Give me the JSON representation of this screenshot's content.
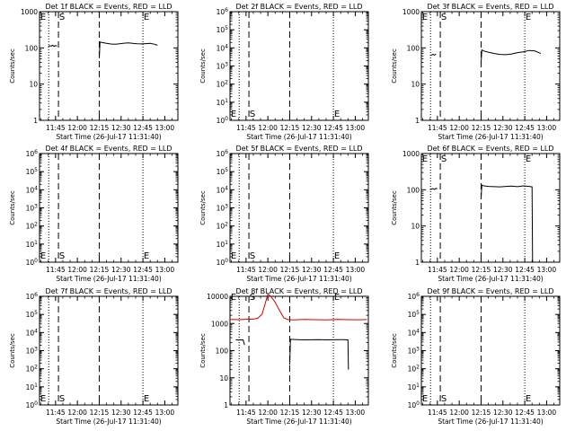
{
  "figure": {
    "ylabel": "Counts/sec",
    "xlabel": "Start Time (26-Jul-17 11:31:40)",
    "x_ticks": [
      "11:45",
      "12:00",
      "12:15",
      "12:30",
      "12:45",
      "13:00"
    ],
    "x_tick_minutes": [
      705,
      720,
      735,
      750,
      765,
      780
    ],
    "colors": {
      "events": "#000000",
      "lld": "#d00000",
      "axes": "#000000"
    }
  },
  "chart_data": [
    {
      "title": "Det 1f BLACK = Events, RED = LLD",
      "type": "line",
      "y_scale": "log",
      "ylim": [
        1,
        1000
      ],
      "y_tick_labels": [
        "1",
        "10",
        "100",
        "1000"
      ],
      "xlim_minutes": [
        694,
        789
      ],
      "annotations": [
        "E",
        "S",
        "E"
      ],
      "series": [
        {
          "color": "#000000",
          "x_minutes": [
            700,
            701,
            702,
            703,
            704,
            705,
            706
          ],
          "values": [
            110,
            115,
            112,
            118,
            110,
            116,
            112
          ]
        },
        {
          "color": "#000000",
          "x_minutes": [
            735,
            735.5,
            737,
            740,
            743,
            746,
            749,
            752,
            755,
            758,
            761,
            764,
            767,
            770,
            773,
            775
          ],
          "values": [
            52,
            145,
            140,
            133,
            128,
            126,
            130,
            135,
            138,
            133,
            130,
            129,
            131,
            134,
            126,
            118
          ]
        }
      ]
    },
    {
      "title": "Det 2f BLACK = Events, RED = LLD",
      "type": "line",
      "y_scale": "log",
      "ylim": [
        1,
        1000000
      ],
      "y_tick_labels": [
        "10^0",
        "10^1",
        "10^2",
        "10^3",
        "10^4",
        "10^5",
        "10^6"
      ],
      "xlim_minutes": [
        694,
        789
      ],
      "annotations": [
        "E",
        "S",
        "E"
      ],
      "series": []
    },
    {
      "title": "Det 3f BLACK = Events, RED = LLD",
      "type": "line",
      "y_scale": "log",
      "ylim": [
        1,
        1000
      ],
      "y_tick_labels": [
        "1",
        "10",
        "100",
        "1000"
      ],
      "xlim_minutes": [
        694,
        789
      ],
      "annotations": [
        "E",
        "S",
        "E"
      ],
      "series": [
        {
          "color": "#000000",
          "x_minutes": [
            700,
            701,
            702,
            703,
            704
          ],
          "values": [
            62,
            64,
            66,
            63,
            68
          ]
        },
        {
          "color": "#000000",
          "x_minutes": [
            735,
            735.5,
            737,
            740,
            744,
            748,
            752,
            756,
            760,
            764,
            768,
            772,
            776
          ],
          "values": [
            40,
            88,
            82,
            76,
            70,
            66,
            65,
            68,
            74,
            78,
            85,
            82,
            70
          ]
        }
      ]
    },
    {
      "title": "Det 4f BLACK = Events, RED = LLD",
      "type": "line",
      "y_scale": "log",
      "ylim": [
        1,
        1000000
      ],
      "y_tick_labels": [
        "10^0",
        "10^1",
        "10^2",
        "10^3",
        "10^4",
        "10^5",
        "10^6"
      ],
      "xlim_minutes": [
        694,
        789
      ],
      "annotations": [
        "E",
        "S",
        "E"
      ],
      "series": []
    },
    {
      "title": "Det 5f BLACK = Events, RED = LLD",
      "type": "line",
      "y_scale": "log",
      "ylim": [
        1,
        1000000
      ],
      "y_tick_labels": [
        "10^0",
        "10^1",
        "10^2",
        "10^3",
        "10^4",
        "10^5",
        "10^6"
      ],
      "xlim_minutes": [
        694,
        789
      ],
      "annotations": [
        "E",
        "S",
        "E"
      ],
      "series": []
    },
    {
      "title": "Det 6f BLACK = Events, RED = LLD",
      "type": "line",
      "y_scale": "log",
      "ylim": [
        1,
        1000
      ],
      "y_tick_labels": [
        "1",
        "10",
        "100",
        "1000"
      ],
      "xlim_minutes": [
        694,
        789
      ],
      "annotations": [
        "E",
        "S",
        "E"
      ],
      "series": [
        {
          "color": "#000000",
          "x_minutes": [
            700,
            701,
            702,
            703,
            704,
            705
          ],
          "values": [
            100,
            104,
            108,
            102,
            110,
            106
          ]
        },
        {
          "color": "#000000",
          "x_minutes": [
            735,
            735.5,
            737,
            740,
            744,
            748,
            752,
            756,
            760,
            764,
            768,
            770,
            770.4
          ],
          "values": [
            60,
            135,
            128,
            124,
            122,
            120,
            124,
            126,
            122,
            128,
            124,
            120,
            1
          ]
        }
      ]
    },
    {
      "title": "Det 7f BLACK = Events, RED = LLD",
      "type": "line",
      "y_scale": "log",
      "ylim": [
        1,
        1000000
      ],
      "y_tick_labels": [
        "10^0",
        "10^1",
        "10^2",
        "10^3",
        "10^4",
        "10^5",
        "10^6"
      ],
      "xlim_minutes": [
        694,
        789
      ],
      "annotations": [
        "E",
        "S",
        "E"
      ],
      "series": []
    },
    {
      "title": "Det 8f BLACK = Events, RED = LLD",
      "type": "line",
      "y_scale": "log",
      "ylim": [
        1,
        10000
      ],
      "y_tick_labels": [
        "1",
        "10",
        "100",
        "1000",
        "10000"
      ],
      "xlim_minutes": [
        694,
        789
      ],
      "annotations": [
        "E",
        "S",
        "E"
      ],
      "series": [
        {
          "color": "#d00000",
          "x_minutes": [
            694,
            700,
            705,
            710,
            713,
            716,
            718,
            720,
            722,
            725,
            728,
            731,
            734,
            738,
            745,
            752,
            760,
            768,
            775,
            782,
            788
          ],
          "values": [
            1400,
            1380,
            1420,
            1450,
            1550,
            2200,
            5000,
            12000,
            10000,
            6000,
            3000,
            1600,
            1380,
            1360,
            1400,
            1380,
            1360,
            1400,
            1380,
            1370,
            1390
          ]
        },
        {
          "color": "#000000",
          "x_minutes": [
            698,
            699,
            700,
            701,
            702,
            703,
            704
          ],
          "values": [
            250,
            250,
            245,
            250,
            248,
            250,
            160
          ]
        },
        {
          "color": "#000000",
          "x_minutes": [
            735,
            735.5,
            740,
            745,
            750,
            755,
            760,
            765,
            770,
            775,
            775.3
          ],
          "values": [
            30,
            260,
            255,
            250,
            252,
            255,
            250,
            252,
            255,
            250,
            20
          ]
        }
      ]
    },
    {
      "title": "Det 9f BLACK = Events, RED = LLD",
      "type": "line",
      "y_scale": "log",
      "ylim": [
        1,
        1000000
      ],
      "y_tick_labels": [
        "10^0",
        "10^1",
        "10^2",
        "10^3",
        "10^4",
        "10^5",
        "10^6"
      ],
      "xlim_minutes": [
        694,
        789
      ],
      "annotations": [
        "E",
        "S",
        "E"
      ],
      "series": []
    }
  ]
}
